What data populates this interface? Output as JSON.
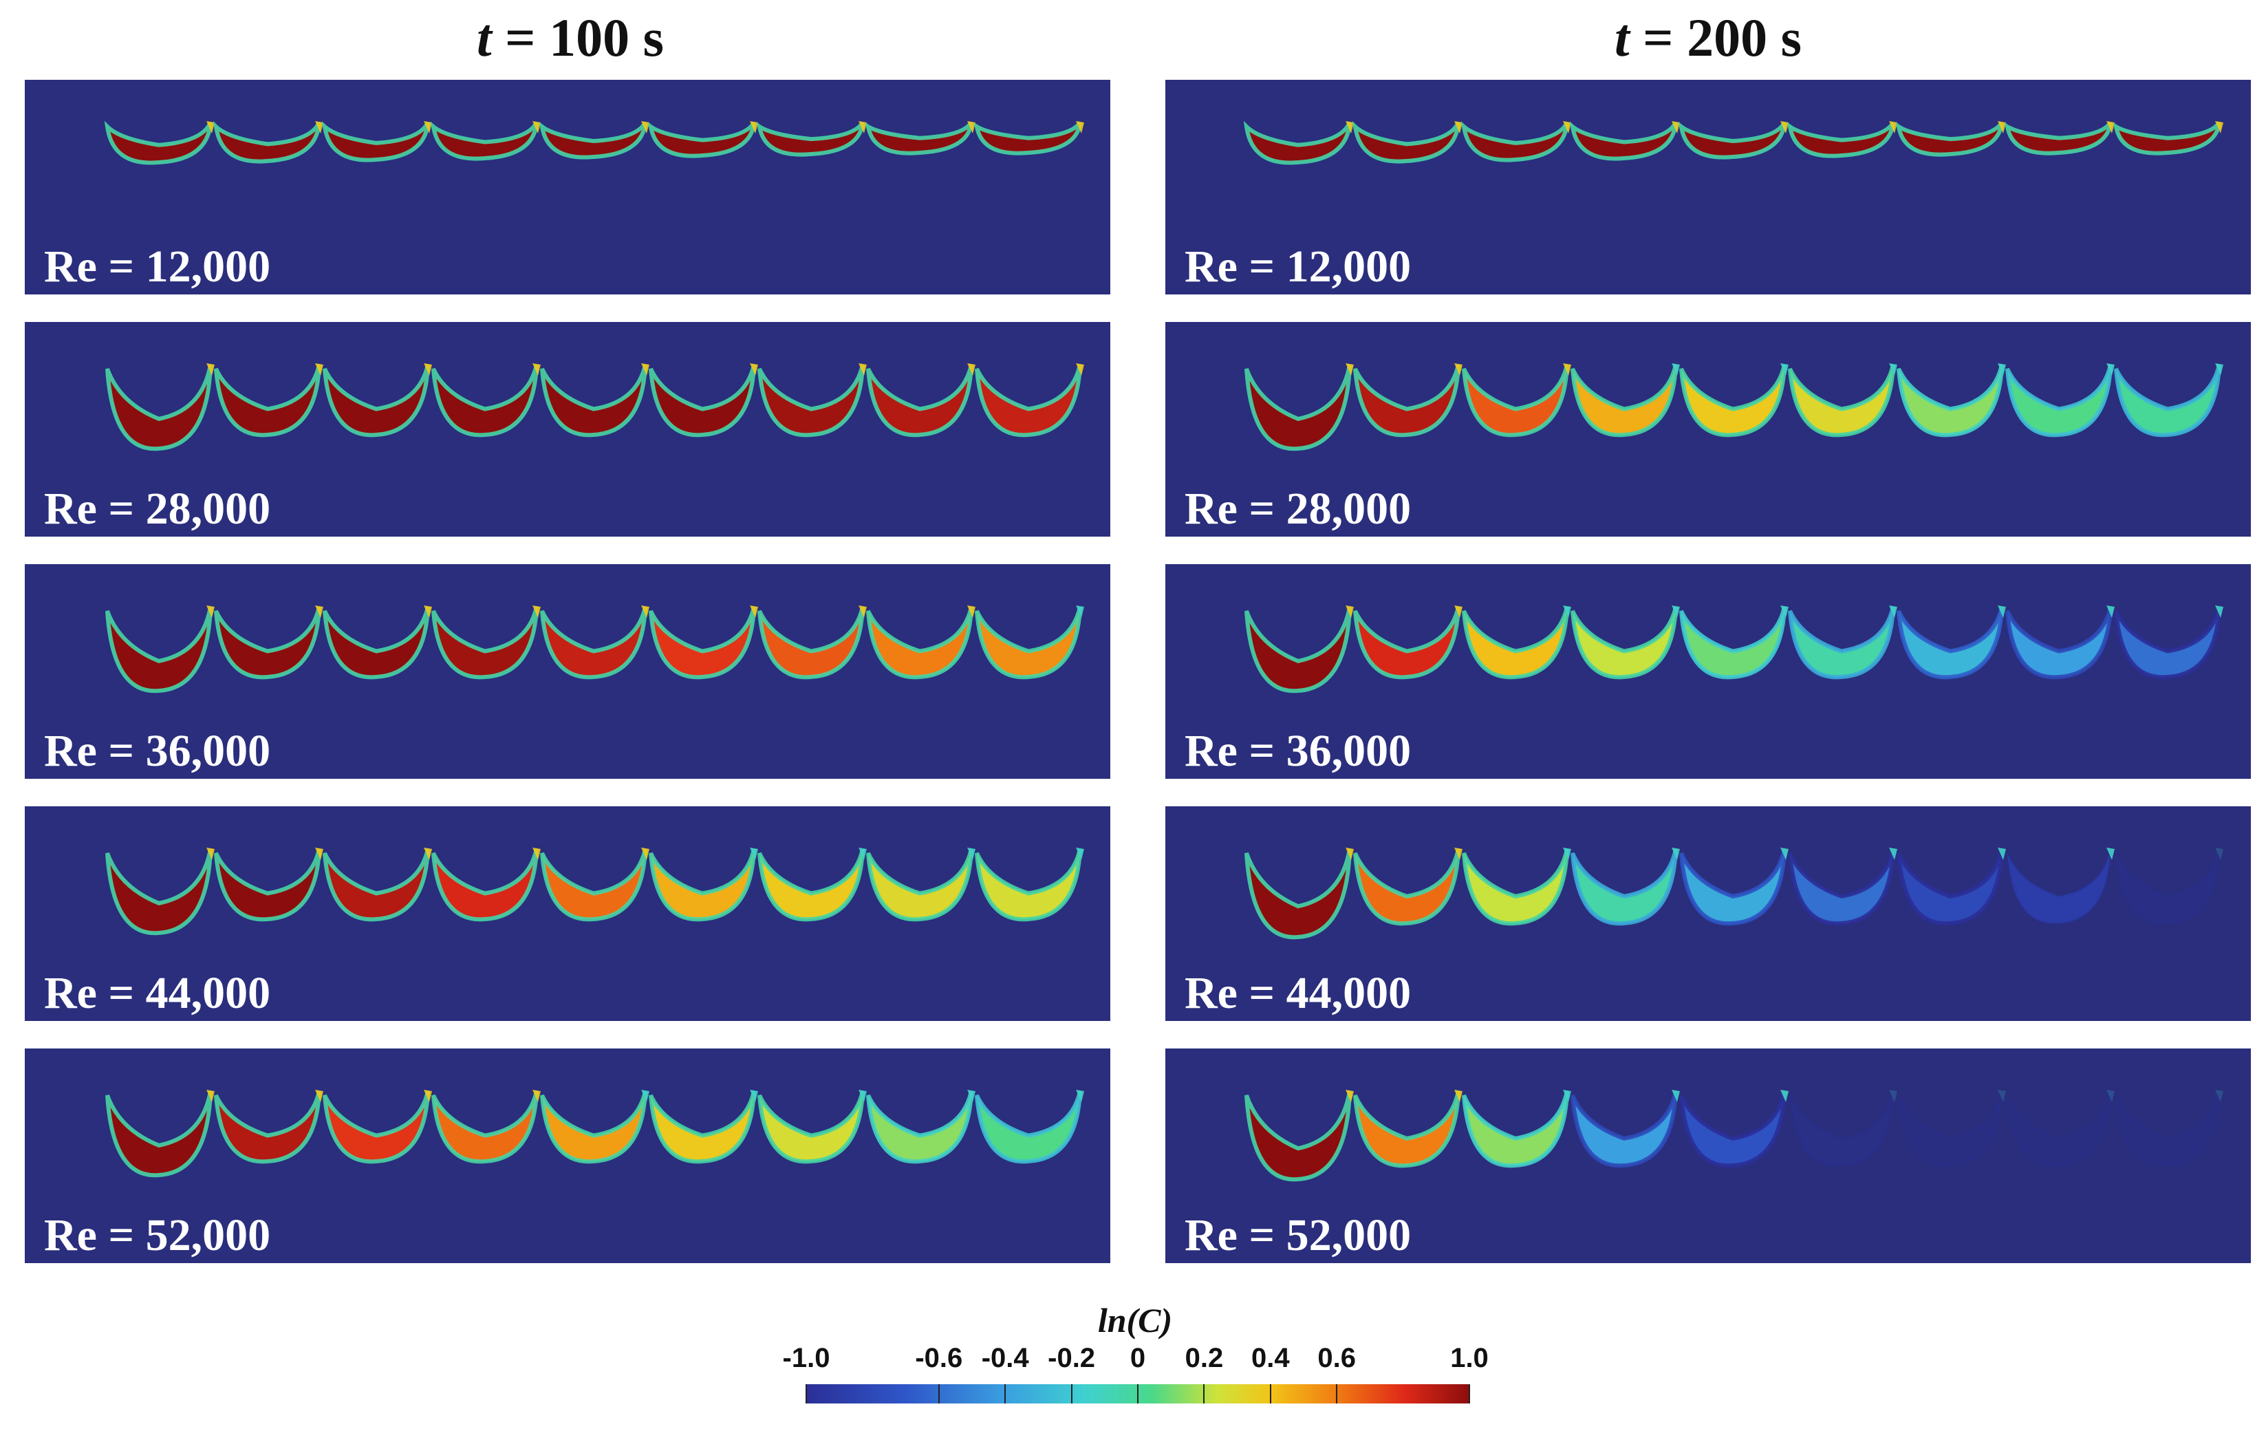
{
  "columns": [
    {
      "var": "t",
      "rest": " = 100 s"
    },
    {
      "var": "t",
      "rest": " = 200 s"
    }
  ],
  "panels": [
    [
      "Re = 12,000",
      "Re = 28,000",
      "Re = 36,000",
      "Re = 44,000",
      "Re = 52,000"
    ],
    [
      "Re = 12,000",
      "Re = 28,000",
      "Re = 36,000",
      "Re = 44,000",
      "Re = 52,000"
    ]
  ],
  "legend": {
    "title": "ln(C)",
    "ticks": [
      "-1.0",
      "-0.6",
      "-0.4",
      "-0.2",
      "0",
      "0.2",
      "0.4",
      "0.6",
      "1.0"
    ],
    "tick_values": [
      -1.0,
      -0.6,
      -0.4,
      -0.2,
      0,
      0.2,
      0.4,
      0.6,
      1.0
    ]
  },
  "colors": {
    "background": "#2a2e7c",
    "scale": [
      "#2b2f97",
      "#2f56c8",
      "#3a9fe0",
      "#3fd0d0",
      "#49d88a",
      "#cfe23a",
      "#f2c418",
      "#f07c12",
      "#e02a18",
      "#8c0d0d"
    ]
  },
  "cavity_values": [
    [
      [
        1.0,
        1.0,
        1.0,
        1.0,
        1.0,
        1.0,
        1.0,
        1.0,
        1.0
      ],
      [
        1.0,
        1.0,
        1.0,
        1.0,
        1.0,
        1.0,
        0.95,
        0.9,
        0.85
      ],
      [
        1.0,
        1.0,
        1.0,
        0.95,
        0.85,
        0.75,
        0.65,
        0.55,
        0.5
      ],
      [
        1.0,
        1.0,
        0.9,
        0.8,
        0.6,
        0.4,
        0.3,
        0.2,
        0.15
      ],
      [
        1.0,
        0.9,
        0.75,
        0.6,
        0.45,
        0.3,
        0.15,
        0.0,
        -0.1
      ]
    ],
    [
      [
        1.0,
        1.0,
        1.0,
        1.0,
        1.0,
        1.0,
        1.0,
        1.0,
        1.0
      ],
      [
        1.0,
        0.9,
        0.65,
        0.4,
        0.3,
        0.2,
        0.0,
        -0.1,
        -0.15
      ],
      [
        1.0,
        0.8,
        0.35,
        0.1,
        -0.05,
        -0.2,
        -0.45,
        -0.55,
        -0.7
      ],
      [
        1.0,
        0.6,
        0.1,
        -0.2,
        -0.5,
        -0.7,
        -0.85,
        -0.92,
        -0.97
      ],
      [
        1.0,
        0.55,
        0.0,
        -0.55,
        -0.8,
        -0.95,
        -1.0,
        -1.0,
        -1.0
      ]
    ]
  ]
}
